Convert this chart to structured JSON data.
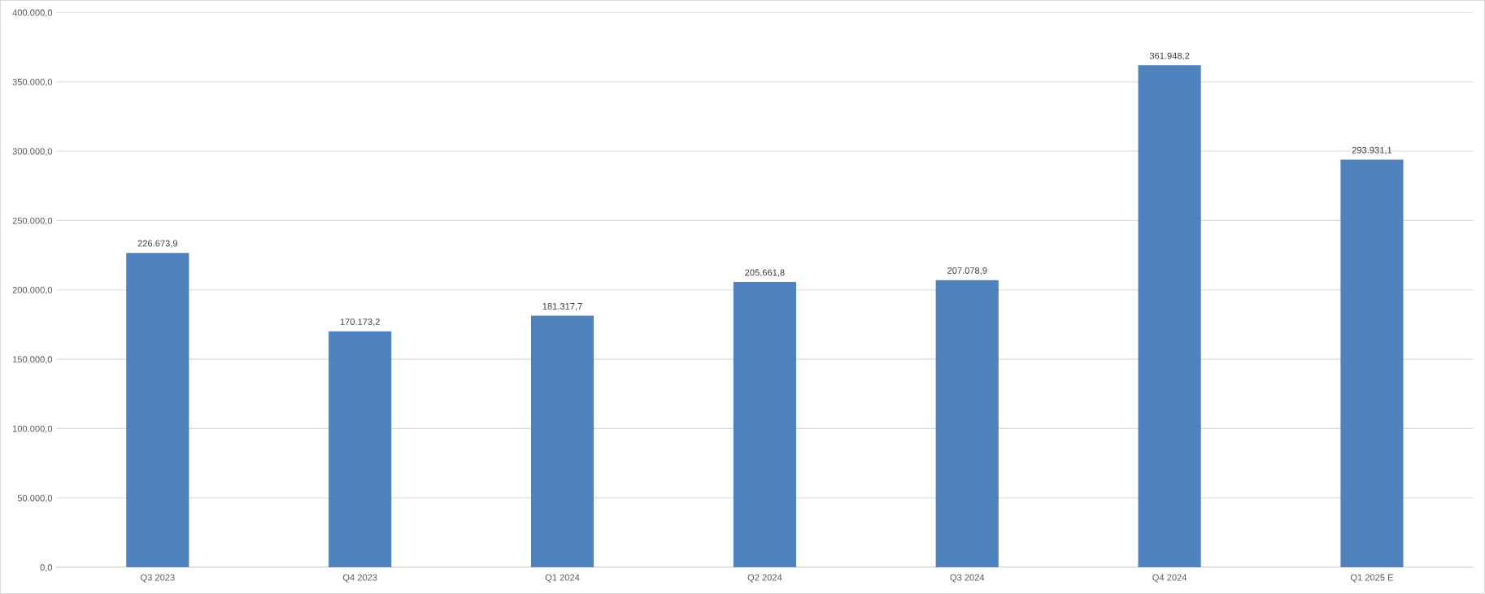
{
  "chart_data": {
    "type": "bar",
    "categories": [
      "Q3 2023",
      "Q4 2023",
      "Q1 2024",
      "Q2 2024",
      "Q3 2024",
      "Q4 2024",
      "Q1 2025 E"
    ],
    "values": [
      226673.9,
      170173.2,
      181317.7,
      205661.8,
      207078.9,
      361948.2,
      293931.1
    ],
    "value_labels": [
      "226.673,9",
      "170.173,2",
      "181.317,7",
      "205.661,8",
      "207.078,9",
      "361.948,2",
      "293.931,1"
    ],
    "color": "#4f81bd",
    "ylim": [
      0,
      400000
    ],
    "yticks": [
      {
        "value": 0,
        "label": "0,0"
      },
      {
        "value": 50000,
        "label": "50.000,0"
      },
      {
        "value": 100000,
        "label": "100.000,0"
      },
      {
        "value": 150000,
        "label": "150.000,0"
      },
      {
        "value": 200000,
        "label": "200.000,0"
      },
      {
        "value": 250000,
        "label": "250.000,0"
      },
      {
        "value": 300000,
        "label": "300.000,0"
      },
      {
        "value": 350000,
        "label": "350.000,0"
      },
      {
        "value": 400000,
        "label": "400.000,0"
      }
    ],
    "grid": "y",
    "legend": false
  }
}
